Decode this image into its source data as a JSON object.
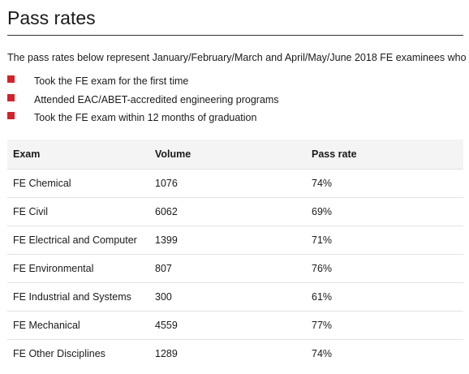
{
  "title": "Pass rates",
  "intro": "The pass rates below represent January/February/March and April/May/June 2018 FE examinees who",
  "bullets": [
    "Took the FE exam for the first time",
    "Attended EAC/ABET-accredited engineering programs",
    "Took the FE exam within 12 months of graduation"
  ],
  "colors": {
    "bullet": "#d2232a",
    "header_bg": "#f4f4f4"
  },
  "table": {
    "headers": [
      "Exam",
      "Volume",
      "Pass rate"
    ],
    "rows": [
      [
        "FE Chemical",
        "1076",
        "74%"
      ],
      [
        "FE Civil",
        "6062",
        "69%"
      ],
      [
        "FE Electrical and Computer",
        "1399",
        "71%"
      ],
      [
        "FE Environmental",
        "807",
        "76%"
      ],
      [
        "FE Industrial and Systems",
        "300",
        "61%"
      ],
      [
        "FE Mechanical",
        "4559",
        "77%"
      ],
      [
        "FE Other Disciplines",
        "1289",
        "74%"
      ]
    ]
  }
}
